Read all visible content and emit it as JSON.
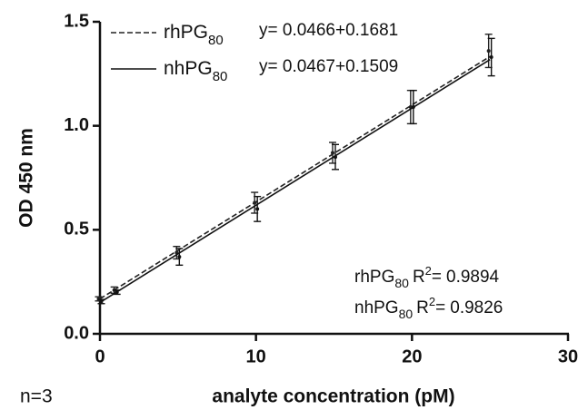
{
  "chart_data": {
    "type": "line",
    "xlabel": "analyte concentration (pM)",
    "ylabel": "OD 450 nm",
    "annotation": "n=3",
    "x": [
      0,
      1,
      5,
      10,
      15,
      20,
      25
    ],
    "series": [
      {
        "name": "rhPG",
        "name_sub": "80",
        "color": "#222222",
        "dash": true,
        "values": [
          0.168,
          0.21,
          0.39,
          0.63,
          0.87,
          1.09,
          1.36
        ],
        "errors": [
          0.01,
          0.015,
          0.03,
          0.05,
          0.05,
          0.08,
          0.08
        ],
        "fit": {
          "slope": 0.0466,
          "intercept": 0.1681,
          "equation": "y= 0.0466+0.1681"
        },
        "r2": 0.9894
      },
      {
        "name": "nhPG",
        "name_sub": "80",
        "color": "#111111",
        "dash": false,
        "values": [
          0.155,
          0.2,
          0.37,
          0.6,
          0.85,
          1.09,
          1.33
        ],
        "errors": [
          0.01,
          0.01,
          0.04,
          0.06,
          0.06,
          0.08,
          0.09
        ],
        "fit": {
          "slope": 0.0467,
          "intercept": 0.1509,
          "equation": "y= 0.0467+0.1509"
        },
        "r2": 0.9826
      }
    ],
    "r2_prefix": "R",
    "r2_sup": "2",
    "r2_eq": "=",
    "xlim": [
      0,
      30
    ],
    "xticks": [
      0,
      10,
      20,
      30
    ],
    "ylim": [
      0,
      1.5
    ],
    "yticks": [
      {
        "value": 0,
        "label": "0.0"
      },
      0.5,
      {
        "value": 1,
        "label": "1.0"
      },
      1.5
    ]
  }
}
